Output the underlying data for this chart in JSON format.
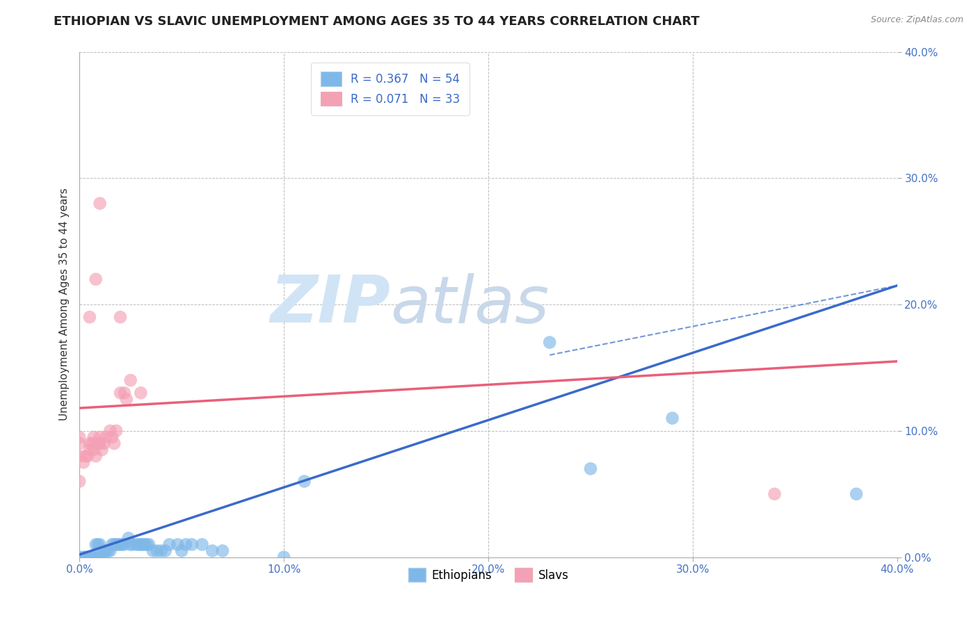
{
  "title": "ETHIOPIAN VS SLAVIC UNEMPLOYMENT AMONG AGES 35 TO 44 YEARS CORRELATION CHART",
  "source_text": "Source: ZipAtlas.com",
  "ylabel": "Unemployment Among Ages 35 to 44 years",
  "xlabel": "",
  "xlim": [
    0.0,
    0.4
  ],
  "ylim": [
    0.0,
    0.4
  ],
  "xticks": [
    0.0,
    0.1,
    0.2,
    0.3,
    0.4
  ],
  "yticks": [
    0.0,
    0.1,
    0.2,
    0.3,
    0.4
  ],
  "xticklabels": [
    "0.0%",
    "10.0%",
    "20.0%",
    "30.0%",
    "40.0%"
  ],
  "yticklabels": [
    "0.0%",
    "10.0%",
    "20.0%",
    "30.0%",
    "40.0%"
  ],
  "ethiopian_color": "#7EB8E8",
  "slavic_color": "#F4A0B5",
  "ethiopian_line_color": "#3A6ACA",
  "slavic_line_color": "#E8607A",
  "ethiopian_R": 0.367,
  "ethiopian_N": 54,
  "slavic_R": 0.071,
  "slavic_N": 33,
  "background_color": "#FFFFFF",
  "grid_color": "#BBBBBB",
  "title_fontsize": 13,
  "axis_label_fontsize": 11,
  "tick_fontsize": 11,
  "legend_fontsize": 12,
  "tick_color": "#4472C4",
  "ethiopian_scatter": [
    [
      0.0,
      0.0
    ],
    [
      0.002,
      0.0
    ],
    [
      0.003,
      0.0
    ],
    [
      0.004,
      0.0
    ],
    [
      0.005,
      0.0
    ],
    [
      0.005,
      0.0
    ],
    [
      0.006,
      0.0
    ],
    [
      0.007,
      0.0
    ],
    [
      0.008,
      0.0
    ],
    [
      0.008,
      0.01
    ],
    [
      0.009,
      0.0
    ],
    [
      0.009,
      0.01
    ],
    [
      0.01,
      0.0
    ],
    [
      0.01,
      0.01
    ],
    [
      0.011,
      0.0
    ],
    [
      0.012,
      0.005
    ],
    [
      0.013,
      0.005
    ],
    [
      0.014,
      0.005
    ],
    [
      0.015,
      0.005
    ],
    [
      0.016,
      0.01
    ],
    [
      0.017,
      0.01
    ],
    [
      0.018,
      0.01
    ],
    [
      0.019,
      0.01
    ],
    [
      0.02,
      0.01
    ],
    [
      0.021,
      0.01
    ],
    [
      0.022,
      0.01
    ],
    [
      0.024,
      0.015
    ],
    [
      0.025,
      0.01
    ],
    [
      0.026,
      0.01
    ],
    [
      0.028,
      0.01
    ],
    [
      0.029,
      0.01
    ],
    [
      0.03,
      0.01
    ],
    [
      0.031,
      0.01
    ],
    [
      0.032,
      0.01
    ],
    [
      0.033,
      0.01
    ],
    [
      0.034,
      0.01
    ],
    [
      0.036,
      0.005
    ],
    [
      0.038,
      0.005
    ],
    [
      0.04,
      0.005
    ],
    [
      0.042,
      0.005
    ],
    [
      0.044,
      0.01
    ],
    [
      0.048,
      0.01
    ],
    [
      0.05,
      0.005
    ],
    [
      0.052,
      0.01
    ],
    [
      0.055,
      0.01
    ],
    [
      0.06,
      0.01
    ],
    [
      0.065,
      0.005
    ],
    [
      0.07,
      0.005
    ],
    [
      0.1,
      0.0
    ],
    [
      0.11,
      0.06
    ],
    [
      0.23,
      0.17
    ],
    [
      0.25,
      0.07
    ],
    [
      0.29,
      0.11
    ],
    [
      0.38,
      0.05
    ]
  ],
  "slavic_scatter": [
    [
      0.0,
      0.06
    ],
    [
      0.0,
      0.08
    ],
    [
      0.0,
      0.09
    ],
    [
      0.0,
      0.095
    ],
    [
      0.002,
      0.075
    ],
    [
      0.003,
      0.08
    ],
    [
      0.004,
      0.08
    ],
    [
      0.005,
      0.085
    ],
    [
      0.005,
      0.09
    ],
    [
      0.006,
      0.09
    ],
    [
      0.007,
      0.085
    ],
    [
      0.007,
      0.095
    ],
    [
      0.008,
      0.08
    ],
    [
      0.009,
      0.09
    ],
    [
      0.01,
      0.09
    ],
    [
      0.01,
      0.095
    ],
    [
      0.011,
      0.085
    ],
    [
      0.012,
      0.09
    ],
    [
      0.013,
      0.095
    ],
    [
      0.015,
      0.1
    ],
    [
      0.016,
      0.095
    ],
    [
      0.017,
      0.09
    ],
    [
      0.018,
      0.1
    ],
    [
      0.02,
      0.13
    ],
    [
      0.022,
      0.13
    ],
    [
      0.023,
      0.125
    ],
    [
      0.025,
      0.14
    ],
    [
      0.03,
      0.13
    ],
    [
      0.005,
      0.19
    ],
    [
      0.008,
      0.22
    ],
    [
      0.01,
      0.28
    ],
    [
      0.02,
      0.19
    ],
    [
      0.34,
      0.05
    ]
  ],
  "eth_trend": [
    0.0,
    0.4,
    0.002,
    0.215
  ],
  "slav_trend": [
    0.0,
    0.4,
    0.118,
    0.155
  ],
  "eth_dash": [
    0.23,
    0.4,
    0.16,
    0.215
  ],
  "watermark_zip_color": "#D0E4F5",
  "watermark_atlas_color": "#C8D8EA"
}
